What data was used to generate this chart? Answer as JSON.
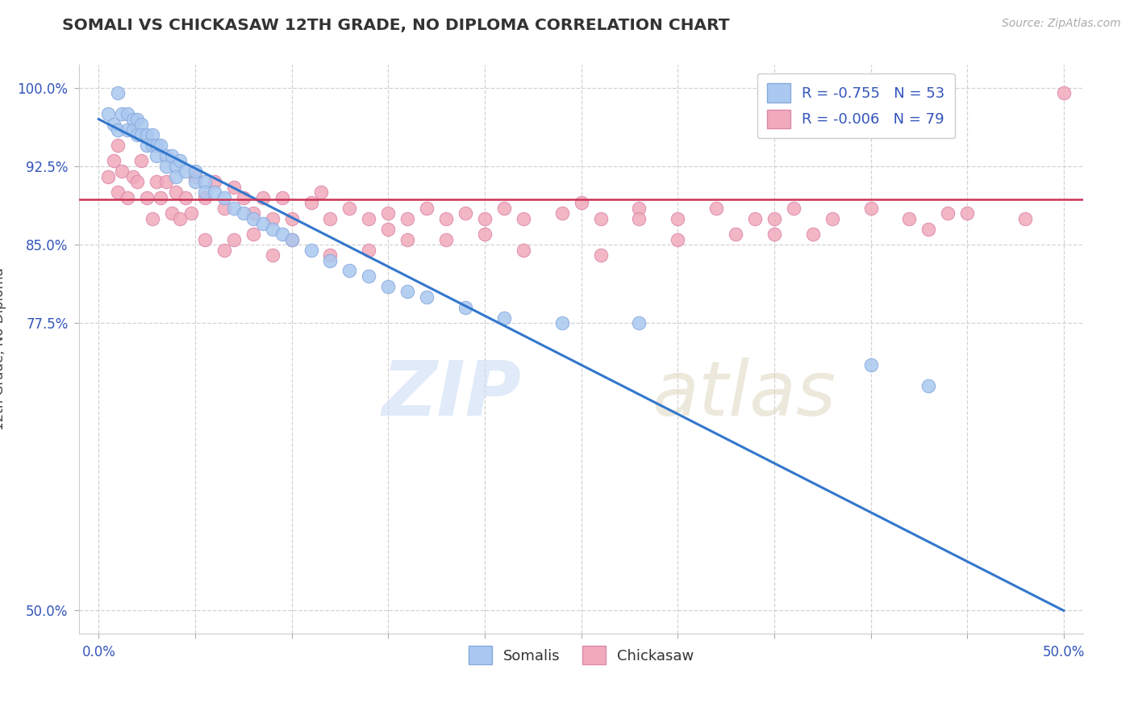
{
  "title": "SOMALI VS CHICKASAW 12TH GRADE, NO DIPLOMA CORRELATION CHART",
  "source": "Source: ZipAtlas.com",
  "ylabel": "12th Grade, No Diploma",
  "somali_R": -0.755,
  "somali_N": 53,
  "chickasaw_R": -0.006,
  "chickasaw_N": 79,
  "somali_color": "#aac8f0",
  "somali_edge_color": "#88aadd",
  "chickasaw_color": "#f0aabb",
  "chickasaw_edge_color": "#dd88aa",
  "somali_line_color": "#3377cc",
  "chickasaw_line_color": "#cc3355",
  "legend_text_color": "#3355bb",
  "tick_color": "#3355bb",
  "grid_color": "#cccccc",
  "xlim_min": -0.01,
  "xlim_max": 0.51,
  "ylim_min": 0.478,
  "ylim_max": 1.022,
  "xtick_positions": [
    0.0,
    0.05,
    0.1,
    0.15,
    0.2,
    0.25,
    0.3,
    0.35,
    0.4,
    0.45,
    0.5
  ],
  "xtick_labels": [
    "0.0%",
    "",
    "",
    "",
    "",
    "",
    "",
    "",
    "",
    "",
    "50.0%"
  ],
  "ytick_positions": [
    0.5,
    0.775,
    0.85,
    0.925,
    1.0
  ],
  "ytick_labels": [
    "50.0%",
    "77.5%",
    "85.0%",
    "92.5%",
    "100.0%"
  ],
  "somali_line_x": [
    0.0,
    0.5
  ],
  "somali_line_y": [
    0.97,
    0.5
  ],
  "chickasaw_line_y": 0.893,
  "bottom_legend_labels": [
    "Somalis",
    "Chickasaw"
  ],
  "somali_pts_x": [
    0.005,
    0.008,
    0.01,
    0.01,
    0.012,
    0.015,
    0.015,
    0.018,
    0.018,
    0.02,
    0.02,
    0.022,
    0.022,
    0.025,
    0.025,
    0.028,
    0.028,
    0.03,
    0.03,
    0.032,
    0.035,
    0.035,
    0.038,
    0.04,
    0.04,
    0.042,
    0.045,
    0.05,
    0.05,
    0.055,
    0.055,
    0.06,
    0.065,
    0.07,
    0.075,
    0.08,
    0.085,
    0.09,
    0.095,
    0.1,
    0.11,
    0.12,
    0.13,
    0.14,
    0.15,
    0.16,
    0.17,
    0.19,
    0.21,
    0.24,
    0.28,
    0.4,
    0.43
  ],
  "somali_pts_y": [
    0.975,
    0.965,
    0.995,
    0.96,
    0.975,
    0.975,
    0.96,
    0.97,
    0.96,
    0.97,
    0.955,
    0.965,
    0.955,
    0.955,
    0.945,
    0.955,
    0.945,
    0.945,
    0.935,
    0.945,
    0.935,
    0.925,
    0.935,
    0.925,
    0.915,
    0.93,
    0.92,
    0.91,
    0.92,
    0.91,
    0.9,
    0.9,
    0.895,
    0.885,
    0.88,
    0.875,
    0.87,
    0.865,
    0.86,
    0.855,
    0.845,
    0.835,
    0.825,
    0.82,
    0.81,
    0.805,
    0.8,
    0.79,
    0.78,
    0.775,
    0.775,
    0.735,
    0.715
  ],
  "chickasaw_pts_x": [
    0.005,
    0.008,
    0.01,
    0.01,
    0.012,
    0.015,
    0.018,
    0.02,
    0.022,
    0.025,
    0.028,
    0.03,
    0.032,
    0.035,
    0.038,
    0.04,
    0.042,
    0.045,
    0.048,
    0.05,
    0.055,
    0.06,
    0.065,
    0.07,
    0.075,
    0.08,
    0.085,
    0.09,
    0.095,
    0.1,
    0.11,
    0.115,
    0.12,
    0.13,
    0.14,
    0.15,
    0.16,
    0.17,
    0.18,
    0.19,
    0.2,
    0.21,
    0.22,
    0.24,
    0.26,
    0.28,
    0.3,
    0.32,
    0.34,
    0.36,
    0.38,
    0.4,
    0.42,
    0.44,
    0.48,
    0.35,
    0.25,
    0.45,
    0.1,
    0.08,
    0.065,
    0.055,
    0.14,
    0.18,
    0.22,
    0.12,
    0.16,
    0.09,
    0.3,
    0.26,
    0.5,
    0.37,
    0.07,
    0.35,
    0.43,
    0.2,
    0.28,
    0.15,
    0.33
  ],
  "chickasaw_pts_y": [
    0.915,
    0.93,
    0.9,
    0.945,
    0.92,
    0.895,
    0.915,
    0.91,
    0.93,
    0.895,
    0.875,
    0.91,
    0.895,
    0.91,
    0.88,
    0.9,
    0.875,
    0.895,
    0.88,
    0.915,
    0.895,
    0.91,
    0.885,
    0.905,
    0.895,
    0.88,
    0.895,
    0.875,
    0.895,
    0.875,
    0.89,
    0.9,
    0.875,
    0.885,
    0.875,
    0.88,
    0.875,
    0.885,
    0.875,
    0.88,
    0.875,
    0.885,
    0.875,
    0.88,
    0.875,
    0.885,
    0.875,
    0.885,
    0.875,
    0.885,
    0.875,
    0.885,
    0.875,
    0.88,
    0.875,
    0.86,
    0.89,
    0.88,
    0.855,
    0.86,
    0.845,
    0.855,
    0.845,
    0.855,
    0.845,
    0.84,
    0.855,
    0.84,
    0.855,
    0.84,
    0.995,
    0.86,
    0.855,
    0.875,
    0.865,
    0.86,
    0.875,
    0.865,
    0.86
  ]
}
